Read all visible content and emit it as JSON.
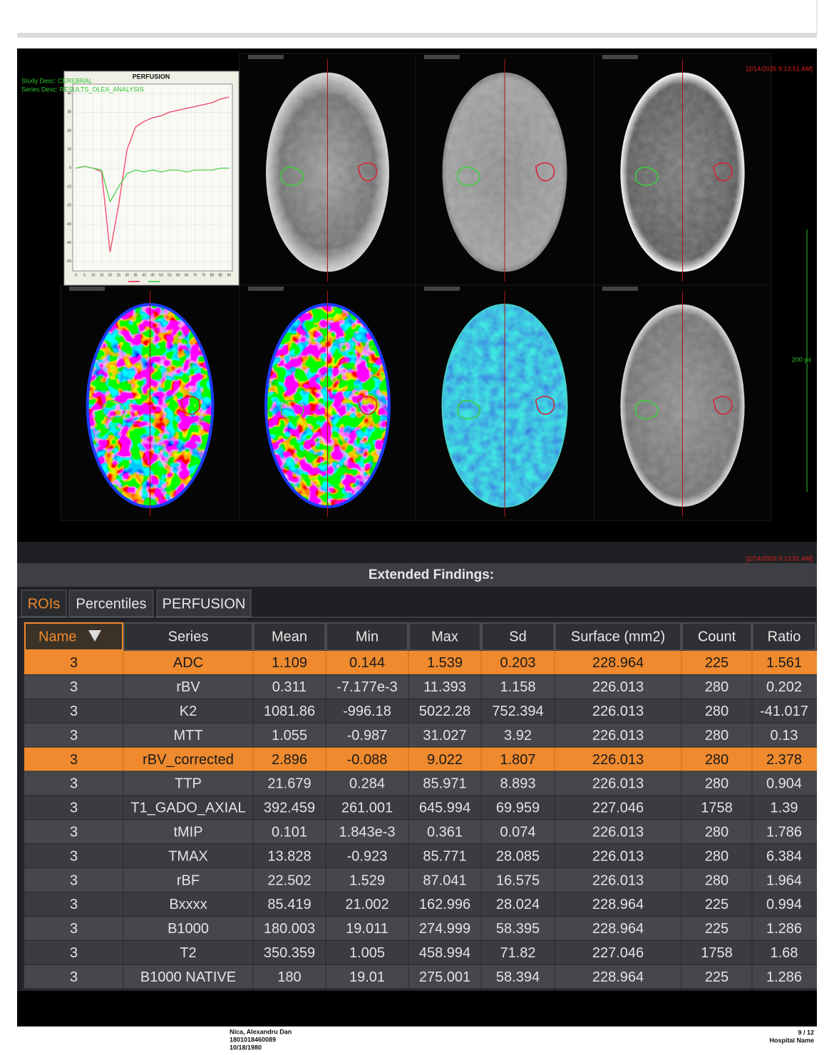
{
  "viewer": {
    "overlay_left": [
      "Study Desc: CEREBRAL",
      "Series Desc: RESULTS_OLEA_ANALYSIS"
    ],
    "timestamp": "[2/14/2026 9:13:51 AM]",
    "scale_label": "200 px",
    "perfusion_chart": {
      "type": "line",
      "title": "PERFUSION",
      "x": [
        0,
        5,
        10,
        15,
        20,
        25,
        30,
        35,
        40,
        45,
        50,
        55,
        60,
        65,
        70,
        75,
        80,
        85,
        90
      ],
      "series": [
        {
          "color": "#f0506e",
          "values": [
            0,
            1,
            0,
            -2,
            -45,
            -20,
            10,
            22,
            25,
            27,
            28,
            30,
            31,
            32,
            33,
            34,
            35,
            37,
            38
          ]
        },
        {
          "color": "#5ad25a",
          "values": [
            0,
            1,
            0,
            -1,
            -18,
            -10,
            -3,
            -1,
            -2,
            -1,
            -2,
            -1,
            -1,
            -2,
            -1,
            -1,
            -1,
            0,
            0
          ]
        }
      ],
      "xlim": [
        -2,
        92
      ],
      "ylim": [
        -55,
        45
      ],
      "xticks": [
        0,
        5,
        10,
        15,
        20,
        25,
        30,
        35,
        40,
        45,
        50,
        55,
        60,
        65,
        70,
        75,
        80,
        85,
        90
      ],
      "yticks": [
        -50,
        -40,
        -30,
        -20,
        -10,
        0,
        10,
        20,
        30,
        40
      ],
      "grid": true
    }
  },
  "findings": {
    "title": "Extended Findings:",
    "tabs": [
      "ROIs",
      "Percentiles",
      "PERFUSION"
    ],
    "active_tab": 0,
    "columns": [
      "Name",
      "Series",
      "Mean",
      "Min",
      "Max",
      "Sd",
      "Surface (mm2)",
      "Count",
      "Ratio"
    ],
    "rows": [
      [
        "3",
        "ADC",
        "1.109",
        "0.144",
        "1.539",
        "0.203",
        "228.964",
        "225",
        "1.561"
      ],
      [
        "3",
        "rBV",
        "0.311",
        "-7.177e-3",
        "11.393",
        "1.158",
        "226.013",
        "280",
        "0.202"
      ],
      [
        "3",
        "K2",
        "1081.86",
        "-996.18",
        "5022.28",
        "752.394",
        "226.013",
        "280",
        "-41.017"
      ],
      [
        "3",
        "MTT",
        "1.055",
        "-0.987",
        "31.027",
        "3.92",
        "226.013",
        "280",
        "0.13"
      ],
      [
        "3",
        "rBV_corrected",
        "2.896",
        "-0.088",
        "9.022",
        "1.807",
        "226.013",
        "280",
        "2.378"
      ],
      [
        "3",
        "TTP",
        "21.679",
        "0.284",
        "85.971",
        "8.893",
        "226.013",
        "280",
        "0.904"
      ],
      [
        "3",
        "T1_GADO_AXIAL",
        "392.459",
        "261.001",
        "645.994",
        "69.959",
        "227.046",
        "1758",
        "1.39"
      ],
      [
        "3",
        "tMIP",
        "0.101",
        "1.843e-3",
        "0.361",
        "0.074",
        "226.013",
        "280",
        "1.786"
      ],
      [
        "3",
        "TMAX",
        "13.828",
        "-0.923",
        "85.771",
        "28.085",
        "226.013",
        "280",
        "6.384"
      ],
      [
        "3",
        "rBF",
        "22.502",
        "1.529",
        "87.041",
        "16.575",
        "226.013",
        "280",
        "1.964"
      ],
      [
        "3",
        "Bxxxx",
        "85.419",
        "21.002",
        "162.996",
        "28.024",
        "228.964",
        "225",
        "0.994"
      ],
      [
        "3",
        "B1000",
        "180.003",
        "19.011",
        "274.999",
        "58.395",
        "228.964",
        "225",
        "1.286"
      ],
      [
        "3",
        "T2",
        "350.359",
        "1.005",
        "458.994",
        "71.82",
        "227.046",
        "1758",
        "1.68"
      ],
      [
        "3",
        "B1000  NATIVE",
        "180",
        "19.01",
        "275.001",
        "58.394",
        "228.964",
        "225",
        "1.286"
      ]
    ],
    "highlighted_rows": [
      0,
      4
    ]
  },
  "footer": {
    "patient": [
      "Nica, Alexandru Dan",
      "1801018460089",
      "10/18/1980"
    ],
    "page": "9 / 12",
    "hospital": "Hospital Name"
  }
}
